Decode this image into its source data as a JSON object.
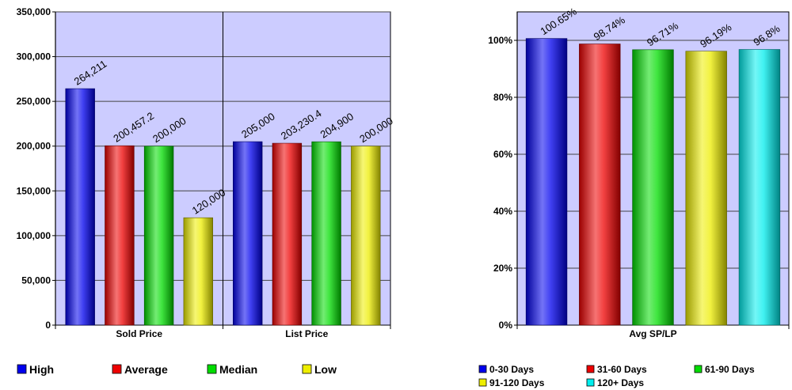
{
  "chart_data": [
    {
      "type": "bar",
      "categories": [
        "Sold Price",
        "List Price"
      ],
      "series": [
        {
          "name": "High",
          "color": "#0000ee",
          "values": [
            264211,
            205000
          ],
          "labels": [
            "264,211",
            "205,000"
          ]
        },
        {
          "name": "Average",
          "color": "#ee0000",
          "values": [
            200457.2,
            203230.4
          ],
          "labels": [
            "200,457.2",
            "203,230.4"
          ]
        },
        {
          "name": "Median",
          "color": "#00dd00",
          "values": [
            200000,
            204900
          ],
          "labels": [
            "200,000",
            "204,900"
          ]
        },
        {
          "name": "Low",
          "color": "#eeee00",
          "values": [
            120000,
            200000
          ],
          "labels": [
            "120,000",
            "200,000"
          ]
        }
      ],
      "ylim": [
        0,
        350000
      ],
      "yticks": [
        {
          "value": 0,
          "label": "0"
        },
        {
          "value": 50000,
          "label": "50,000"
        },
        {
          "value": 100000,
          "label": "100,000"
        },
        {
          "value": 150000,
          "label": "150,000"
        },
        {
          "value": 200000,
          "label": "200,000"
        },
        {
          "value": 250000,
          "label": "250,000"
        },
        {
          "value": 300000,
          "label": "300,000"
        },
        {
          "value": 350000,
          "label": "350,000"
        }
      ],
      "grid": true,
      "plot_background": "#ccccff",
      "legend_position": "bottom"
    },
    {
      "type": "bar",
      "categories": [
        "Avg SP/LP"
      ],
      "series": [
        {
          "name": "0-30 Days",
          "color": "#0000ee",
          "values": [
            100.65
          ],
          "labels": [
            "100.65%"
          ]
        },
        {
          "name": "31-60 Days",
          "color": "#ee0000",
          "values": [
            98.74
          ],
          "labels": [
            "98.74%"
          ]
        },
        {
          "name": "61-90 Days",
          "color": "#00dd00",
          "values": [
            96.71
          ],
          "labels": [
            "96.71%"
          ]
        },
        {
          "name": "91-120 Days",
          "color": "#eeee00",
          "values": [
            96.19
          ],
          "labels": [
            "96.19%"
          ]
        },
        {
          "name": "120+ Days",
          "color": "#00eeee",
          "values": [
            96.8
          ],
          "labels": [
            "96.8%"
          ]
        }
      ],
      "ylim": [
        0,
        110
      ],
      "yticks": [
        {
          "value": 0,
          "label": "0%"
        },
        {
          "value": 20,
          "label": "20%"
        },
        {
          "value": 40,
          "label": "40%"
        },
        {
          "value": 60,
          "label": "60%"
        },
        {
          "value": 80,
          "label": "80%"
        },
        {
          "value": 100,
          "label": "100%"
        }
      ],
      "grid": true,
      "plot_background": "#ccccff",
      "legend_position": "bottom"
    }
  ]
}
